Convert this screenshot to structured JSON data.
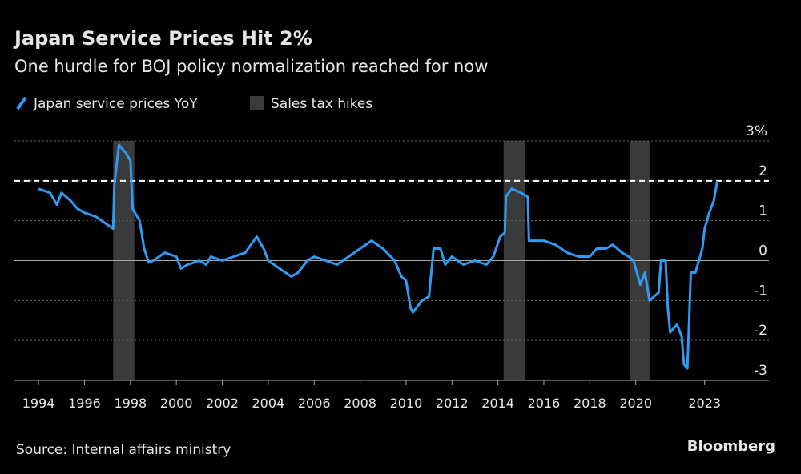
{
  "chart_data": {
    "type": "line",
    "title": "Japan Service Prices Hit 2%",
    "subtitle": "One hurdle for BOJ policy normalization reached for now",
    "source": "Source: Internal affairs ministry",
    "credit": "Bloomberg",
    "x": [
      1994.0,
      1994.5,
      1994.8,
      1995.0,
      1995.4,
      1995.7,
      1996.0,
      1996.5,
      1997.0,
      1997.25,
      1997.3,
      1997.5,
      1997.8,
      1998.0,
      1998.1,
      1998.4,
      1998.6,
      1998.8,
      1999.0,
      1999.5,
      2000.0,
      2000.2,
      2000.5,
      2001.0,
      2001.3,
      2001.5,
      2002.0,
      2002.5,
      2003.0,
      2003.5,
      2003.8,
      2004.0,
      2004.5,
      2005.0,
      2005.3,
      2005.7,
      2006.0,
      2006.5,
      2007.0,
      2007.5,
      2008.0,
      2008.5,
      2009.0,
      2009.5,
      2009.8,
      2010.0,
      2010.2,
      2010.3,
      2010.7,
      2011.0,
      2011.2,
      2011.5,
      2011.7,
      2012.0,
      2012.5,
      2013.0,
      2013.5,
      2013.8,
      2014.1,
      2014.3,
      2014.35,
      2014.6,
      2015.0,
      2015.3,
      2015.35,
      2016.0,
      2016.5,
      2017.0,
      2017.5,
      2018.0,
      2018.3,
      2018.7,
      2019.0,
      2019.4,
      2019.7,
      2019.9,
      2020.2,
      2020.4,
      2020.6,
      2020.8,
      2021.0,
      2021.1,
      2021.3,
      2021.4,
      2021.5,
      2021.8,
      2022.0,
      2022.1,
      2022.25,
      2022.4,
      2022.6,
      2022.9,
      2023.0,
      2023.2,
      2023.4,
      2023.55
    ],
    "series": [
      {
        "name": "Japan service prices YoY",
        "color": "#2f9bf5",
        "values": [
          1.8,
          1.7,
          1.4,
          1.7,
          1.5,
          1.3,
          1.2,
          1.1,
          0.9,
          0.8,
          1.9,
          2.9,
          2.7,
          2.5,
          1.3,
          1.0,
          0.3,
          -0.05,
          0.0,
          0.2,
          0.1,
          -0.2,
          -0.1,
          0.0,
          -0.1,
          0.1,
          0.0,
          0.1,
          0.2,
          0.6,
          0.3,
          0.0,
          -0.2,
          -0.4,
          -0.3,
          0.0,
          0.1,
          0.0,
          -0.1,
          0.1,
          0.3,
          0.5,
          0.3,
          0.0,
          -0.4,
          -0.5,
          -1.2,
          -1.3,
          -1.0,
          -0.9,
          0.3,
          0.3,
          -0.1,
          0.1,
          -0.1,
          0.0,
          -0.1,
          0.1,
          0.6,
          0.7,
          1.6,
          1.8,
          1.7,
          1.6,
          0.5,
          0.5,
          0.4,
          0.2,
          0.1,
          0.1,
          0.3,
          0.3,
          0.4,
          0.2,
          0.1,
          0.0,
          -0.6,
          -0.3,
          -1.0,
          -0.9,
          -0.8,
          0.0,
          0.0,
          -1.2,
          -1.8,
          -1.6,
          -1.9,
          -2.6,
          -2.7,
          -0.3,
          -0.3,
          0.3,
          0.8,
          1.2,
          1.5,
          2.0
        ]
      }
    ],
    "shaded_periods": {
      "name": "Sales tax hikes",
      "color": "#3a3a3a",
      "periods": [
        {
          "start": 1997.25,
          "end": 1998.17
        },
        {
          "start": 2014.25,
          "end": 2015.17
        },
        {
          "start": 2019.75,
          "end": 2020.6
        }
      ]
    },
    "reference_line": {
      "value": 2
    },
    "xlim": [
      1992.95,
      2025.8
    ],
    "xticks": [
      1994,
      1996,
      1998,
      2000,
      2002,
      2004,
      2006,
      2008,
      2010,
      2012,
      2014,
      2016,
      2018,
      2020,
      2023
    ],
    "ylim": [
      -3,
      3
    ],
    "yticks": [
      {
        "value": 3,
        "label": "3%"
      },
      2,
      1,
      0,
      -1,
      -2,
      -3
    ],
    "grid": true
  }
}
